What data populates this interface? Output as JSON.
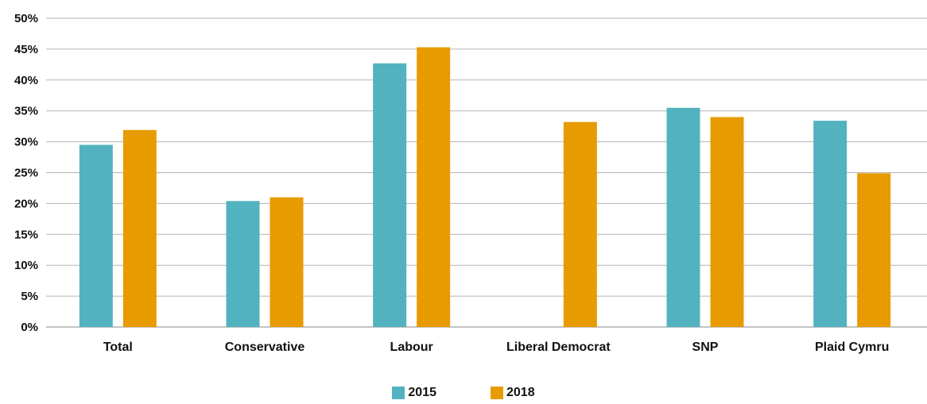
{
  "chart_data": {
    "type": "bar",
    "categories": [
      "Total",
      "Conservative",
      "Labour",
      "Liberal Democrat",
      "SNP",
      "Plaid Cymru"
    ],
    "series": [
      {
        "name": "2015",
        "color": "#53b2bf",
        "values": [
          29.5,
          20.4,
          42.7,
          null,
          35.5,
          33.4
        ]
      },
      {
        "name": "2018",
        "color": "#e89b00",
        "values": [
          31.9,
          21.0,
          45.3,
          33.2,
          34.0,
          24.9
        ]
      }
    ],
    "y_ticks": [
      "0%",
      "5%",
      "10%",
      "15%",
      "20%",
      "25%",
      "30%",
      "35%",
      "40%",
      "45%",
      "50%"
    ],
    "ylim": [
      0,
      50
    ],
    "grid": true,
    "legend_position": "bottom-center",
    "title": "",
    "xlabel": "",
    "ylabel": ""
  }
}
